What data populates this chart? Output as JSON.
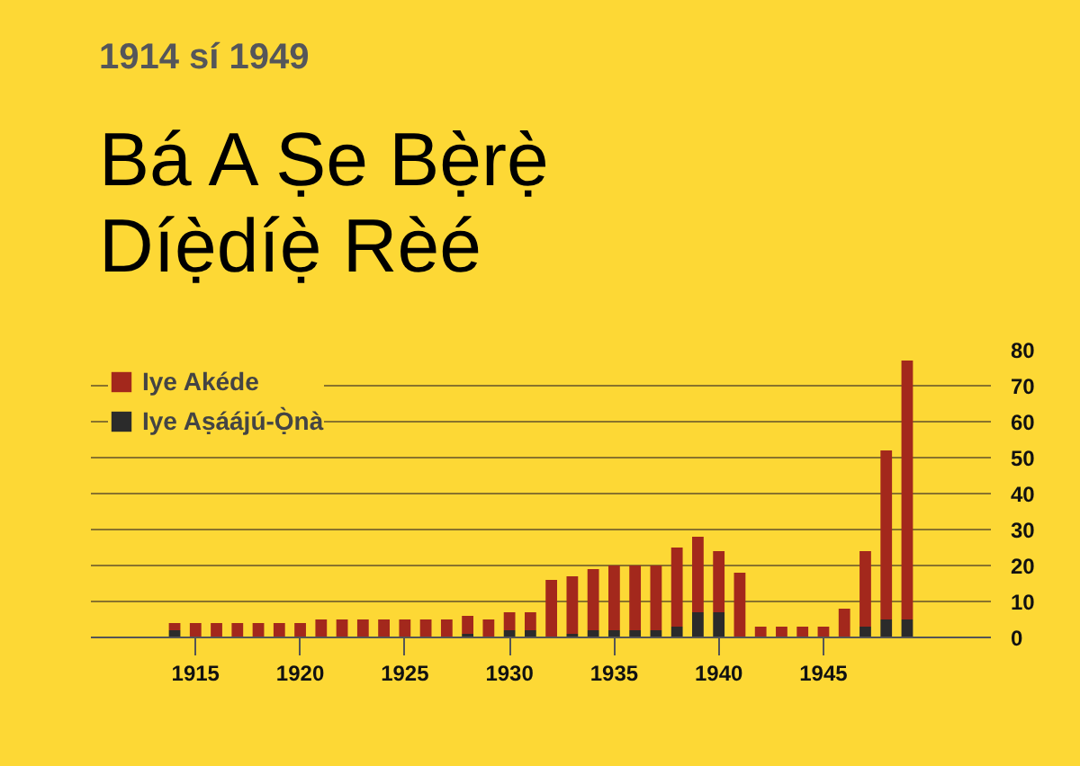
{
  "chart_data": {
    "type": "bar",
    "stacked": true,
    "subtitle": "1914 sí 1949",
    "title": "Bá A Ṣe Bẹ̀rẹ̀\nDíẹ̀díẹ̀ Rèé",
    "x": [
      1914,
      1915,
      1916,
      1917,
      1918,
      1919,
      1920,
      1921,
      1922,
      1923,
      1924,
      1925,
      1926,
      1927,
      1928,
      1929,
      1930,
      1931,
      1932,
      1933,
      1934,
      1935,
      1936,
      1937,
      1938,
      1939,
      1940,
      1941,
      1942,
      1943,
      1944,
      1945,
      1946,
      1947,
      1948,
      1949
    ],
    "series": [
      {
        "name": "Iye Aṣáájú-Ọ̀nà",
        "color": "#2b2b2b",
        "values": [
          2,
          0,
          0,
          0,
          0,
          0,
          0,
          0,
          0,
          0,
          0,
          0,
          0,
          0,
          1,
          0,
          2,
          2,
          0,
          1,
          2,
          2,
          2,
          2,
          3,
          7,
          7,
          0,
          0,
          0,
          0,
          0,
          0,
          3,
          5,
          5
        ]
      },
      {
        "name": "Iye Akéde",
        "color": "#a3281c",
        "values": [
          2,
          4,
          4,
          4,
          4,
          4,
          4,
          5,
          5,
          5,
          5,
          5,
          5,
          5,
          5,
          5,
          5,
          5,
          16,
          16,
          17,
          18,
          18,
          18,
          22,
          21,
          17,
          18,
          3,
          3,
          3,
          3,
          8,
          21,
          47,
          72
        ]
      }
    ],
    "xlim": [
      1910,
      1953
    ],
    "xticks": [
      1915,
      1920,
      1925,
      1930,
      1935,
      1940,
      1945
    ],
    "ylim": [
      0,
      80
    ],
    "yticks": [
      0,
      10,
      20,
      30,
      40,
      50,
      60,
      70,
      80
    ],
    "grid": "y",
    "legend": "top left"
  }
}
